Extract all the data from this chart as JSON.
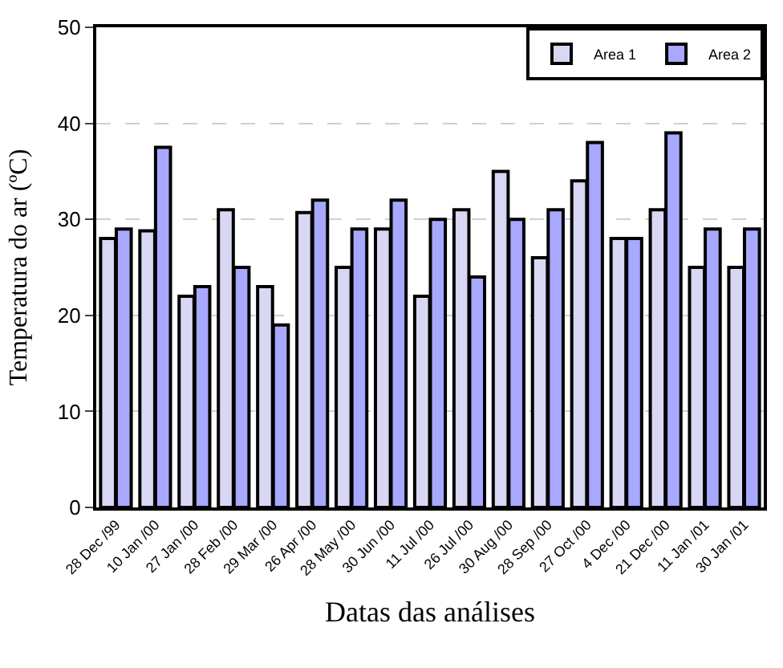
{
  "chart_data": {
    "type": "bar",
    "xlabel": "Datas das análises",
    "ylabel": "Temperatura do ar (ºC)",
    "categories": [
      "28 Dec /99",
      "10 Jan /00",
      "27 Jan /00",
      "28 Feb /00",
      "29 Mar /00",
      "26 Apr /00",
      "28 May /00",
      "30 Jun /00",
      "11 Jul /00",
      "26 Jul /00",
      "30 Aug /00",
      "28 Sep /00",
      "27 Oct /00",
      "4 Dec /00",
      "21 Dec /00",
      "11 Jan /01",
      "30 Jan /01"
    ],
    "series": [
      {
        "name": "Area 1",
        "color": "#d8d8f4",
        "values": [
          28,
          28.8,
          22,
          31,
          23,
          30.7,
          25,
          29,
          22,
          31,
          35,
          26,
          34,
          28,
          31,
          25,
          25
        ]
      },
      {
        "name": "Area 2",
        "color": "#a8a8ff",
        "values": [
          29,
          37.5,
          23,
          25,
          19,
          32,
          29,
          32,
          30,
          24,
          30,
          31,
          38,
          28,
          39,
          29,
          29
        ]
      }
    ],
    "ylim": [
      0,
      50
    ],
    "yticks": [
      0,
      10,
      20,
      30,
      40,
      50
    ],
    "grid": "y",
    "legend": "top right"
  }
}
